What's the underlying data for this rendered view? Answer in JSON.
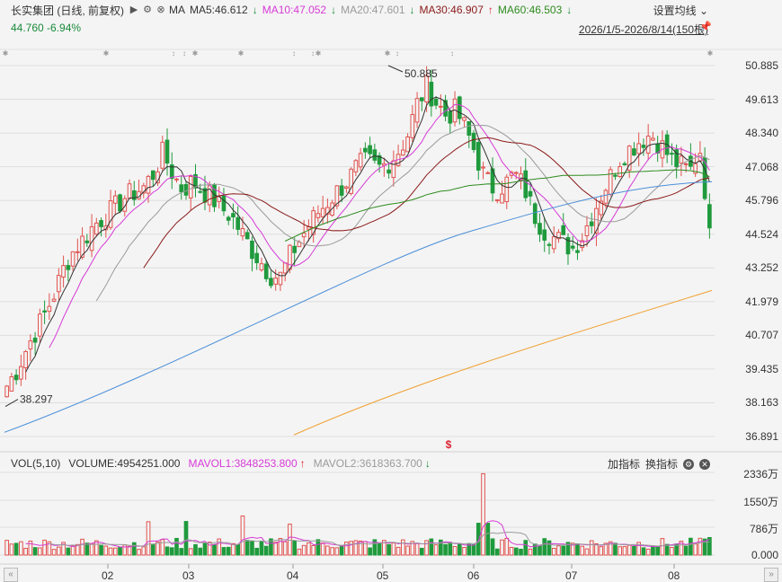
{
  "header": {
    "stock_name": "长实集团 (日线, 前复权)",
    "ma_label": "MA",
    "ma5": "MA5:46.612",
    "ma10": "MA10:47.052",
    "ma20": "MA20:47.601",
    "ma30": "MA30:46.907",
    "ma60": "MA60:46.503",
    "price_change": "44.760  -6.94%",
    "settings_label": "设置均线",
    "date_range": "2026/1/5-2026/8/14(150根)"
  },
  "colors": {
    "up": "#e0534f",
    "down": "#1f9a3c",
    "ma5": "#333333",
    "ma10": "#d63bd6",
    "ma20": "#9a9a9a",
    "ma30": "#8b1a1a",
    "ma60": "#2e8b1e",
    "ma120": "#4a8ed8",
    "ma250": "#f0a030"
  },
  "price_axis": [
    "50.885",
    "49.613",
    "48.340",
    "47.068",
    "45.796",
    "44.524",
    "43.252",
    "41.979",
    "40.707",
    "39.435",
    "38.163",
    "36.891"
  ],
  "annotations": {
    "high": "50.885",
    "low": "38.297",
    "marker": "$"
  },
  "volume": {
    "header": "VOL(5,10)",
    "volume_label": "VOLUME:4954251.000",
    "mavol1": "MAVOL1:3848253.800",
    "mavol2": "MAVOL2:3618363.700",
    "add_indicator": "加指标",
    "switch_indicator": "换指标",
    "axis": [
      "2336万",
      "1550万",
      "786万",
      "0.000"
    ]
  },
  "months": [
    "02",
    "03",
    "04",
    "05",
    "06",
    "07",
    "08"
  ],
  "chart_data": {
    "type": "candlestick",
    "period": "2026/1/5-2026/8/14",
    "ylim": [
      36.891,
      50.885
    ],
    "series": [
      {
        "name": "MA5",
        "value": 46.612
      },
      {
        "name": "MA10",
        "value": 47.052
      },
      {
        "name": "MA20",
        "value": 47.601
      },
      {
        "name": "MA30",
        "value": 46.907
      },
      {
        "name": "MA60",
        "value": 46.503
      }
    ],
    "close_path": [
      38.8,
      39.4,
      40.2,
      40.9,
      41.6,
      42.4,
      43.4,
      44.0,
      44.4,
      44.9,
      45.2,
      45.5,
      45.9,
      46.1,
      46.3,
      46.8,
      47.6,
      46.8,
      46.2,
      46.5,
      46.2,
      45.9,
      45.5,
      45.2,
      44.6,
      44.0,
      43.5,
      43.0,
      42.9,
      43.7,
      44.3,
      44.9,
      45.4,
      45.8,
      46.2,
      46.6,
      47.1,
      47.3,
      47.0,
      47.2,
      47.6,
      48.2,
      49.4,
      50.1,
      49.5,
      49.0,
      49.2,
      48.5,
      47.6,
      46.6,
      46.2,
      46.4,
      46.8,
      46.3,
      45.3,
      44.7,
      44.4,
      44.2,
      44.0,
      44.5,
      45.3,
      46.1,
      46.8,
      47.5,
      47.8,
      48.1,
      48.3,
      47.9,
      47.4,
      47.1,
      46.9,
      47.8,
      44.8
    ],
    "mavol1": 3848253.8,
    "mavol2": 3618363.7,
    "volume_last": 4954251.0
  }
}
